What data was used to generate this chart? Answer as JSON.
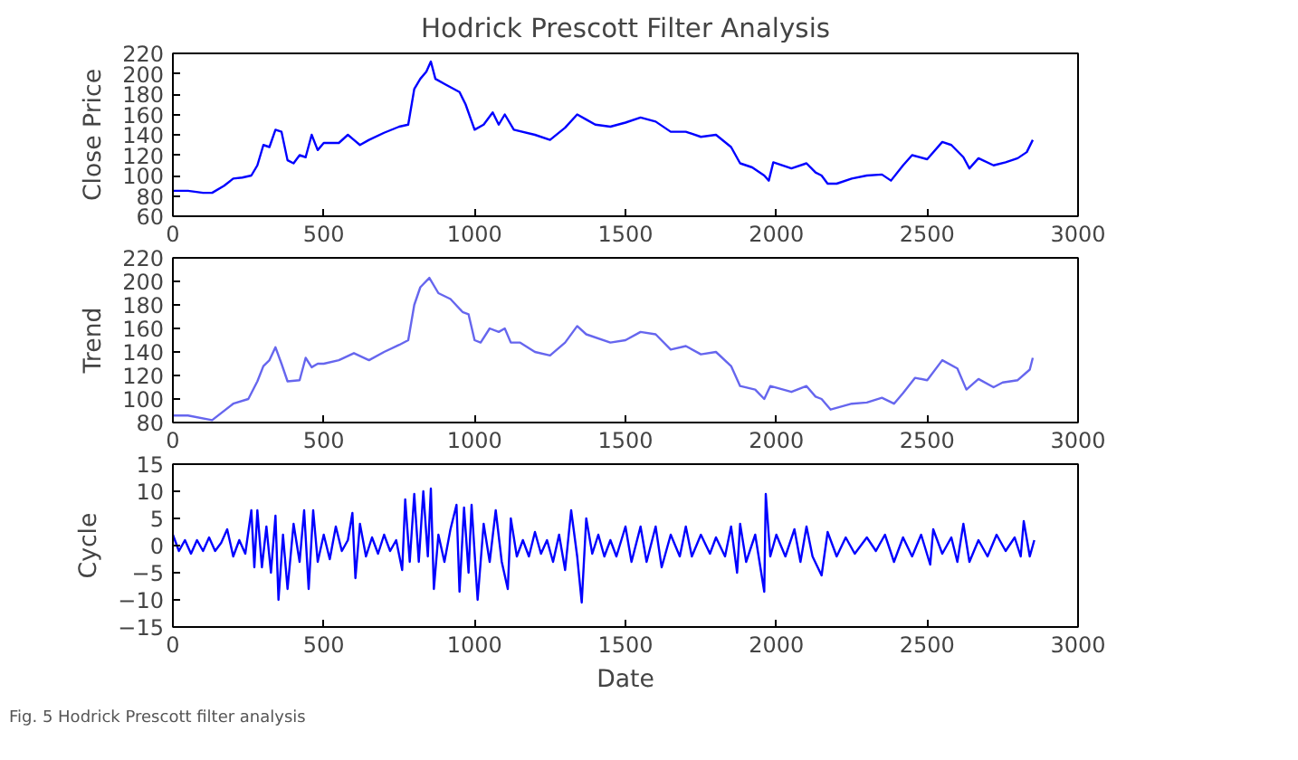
{
  "chart_data": [
    {
      "type": "line",
      "title": "Hodrick Prescott Filter Analysis",
      "ylabel": "Close Price",
      "xlim": [
        0,
        3000
      ],
      "xticks": [
        0,
        500,
        1000,
        1500,
        2000,
        2500,
        3000
      ],
      "ylim": [
        60,
        220
      ],
      "yticks": [
        60,
        80,
        100,
        120,
        140,
        160,
        180,
        200,
        220
      ],
      "series": [
        {
          "color": "#0000ff",
          "x": [
            0,
            50,
            100,
            130,
            170,
            200,
            230,
            260,
            280,
            300,
            320,
            340,
            360,
            380,
            400,
            420,
            440,
            460,
            480,
            500,
            550,
            580,
            600,
            620,
            650,
            700,
            750,
            780,
            800,
            820,
            840,
            855,
            870,
            900,
            950,
            970,
            1000,
            1030,
            1060,
            1080,
            1100,
            1130,
            1200,
            1250,
            1300,
            1340,
            1370,
            1400,
            1450,
            1500,
            1550,
            1600,
            1650,
            1700,
            1750,
            1800,
            1850,
            1880,
            1920,
            1960,
            1975,
            1990,
            2050,
            2100,
            2130,
            2150,
            2170,
            2200,
            2250,
            2300,
            2350,
            2380,
            2420,
            2450,
            2500,
            2550,
            2580,
            2620,
            2640,
            2670,
            2720,
            2760,
            2800,
            2830,
            2850
          ],
          "values": [
            85,
            85,
            83,
            83,
            90,
            97,
            98,
            100,
            110,
            130,
            128,
            145,
            143,
            115,
            112,
            120,
            118,
            140,
            125,
            132,
            132,
            140,
            135,
            130,
            135,
            142,
            148,
            150,
            185,
            195,
            202,
            212,
            195,
            190,
            182,
            170,
            145,
            150,
            162,
            150,
            160,
            145,
            140,
            135,
            147,
            160,
            155,
            150,
            148,
            152,
            157,
            153,
            143,
            143,
            138,
            140,
            128,
            112,
            108,
            100,
            95,
            113,
            107,
            112,
            103,
            100,
            92,
            92,
            97,
            100,
            101,
            95,
            110,
            120,
            116,
            133,
            130,
            118,
            107,
            117,
            110,
            113,
            117,
            123,
            135
          ]
        }
      ]
    },
    {
      "type": "line",
      "ylabel": "Trend",
      "xlim": [
        0,
        3000
      ],
      "xticks": [
        0,
        500,
        1000,
        1500,
        2000,
        2500,
        3000
      ],
      "ylim": [
        80,
        220
      ],
      "yticks": [
        80,
        100,
        120,
        140,
        160,
        180,
        200,
        220
      ],
      "series": [
        {
          "color": "#6666ee",
          "x": [
            0,
            50,
            130,
            200,
            250,
            280,
            300,
            320,
            340,
            360,
            380,
            420,
            440,
            460,
            480,
            500,
            550,
            600,
            650,
            700,
            750,
            780,
            800,
            820,
            850,
            880,
            920,
            960,
            980,
            1000,
            1020,
            1050,
            1080,
            1100,
            1120,
            1150,
            1200,
            1250,
            1300,
            1340,
            1370,
            1450,
            1500,
            1550,
            1600,
            1650,
            1700,
            1750,
            1800,
            1850,
            1880,
            1930,
            1960,
            1980,
            2050,
            2100,
            2130,
            2150,
            2180,
            2250,
            2300,
            2350,
            2390,
            2420,
            2460,
            2500,
            2550,
            2600,
            2630,
            2670,
            2720,
            2750,
            2800,
            2840,
            2850
          ],
          "values": [
            86,
            86,
            82,
            96,
            100,
            115,
            128,
            133,
            144,
            130,
            115,
            116,
            135,
            127,
            130,
            130,
            133,
            139,
            133,
            140,
            146,
            150,
            180,
            195,
            203,
            190,
            185,
            174,
            172,
            150,
            148,
            160,
            157,
            160,
            148,
            148,
            140,
            137,
            148,
            162,
            155,
            148,
            150,
            157,
            155,
            142,
            145,
            138,
            140,
            128,
            111,
            108,
            100,
            111,
            106,
            111,
            102,
            100,
            91,
            96,
            97,
            101,
            96,
            105,
            118,
            116,
            133,
            126,
            108,
            117,
            110,
            114,
            116,
            125,
            135
          ]
        }
      ]
    },
    {
      "type": "line",
      "xlabel": "Date",
      "ylabel": "Cycle",
      "xlim": [
        0,
        3000
      ],
      "xticks": [
        0,
        500,
        1000,
        1500,
        2000,
        2500,
        3000
      ],
      "ylim": [
        -15,
        15
      ],
      "yticks": [
        -15,
        -10,
        -5,
        0,
        5,
        10,
        15
      ],
      "annotations": [
        "Fig. 5 Hodrick Prescott filter analysis"
      ],
      "series": [
        {
          "color": "#0000ff",
          "x": [
            0,
            20,
            40,
            60,
            80,
            100,
            120,
            140,
            160,
            180,
            200,
            220,
            240,
            260,
            270,
            280,
            295,
            310,
            325,
            340,
            350,
            365,
            380,
            400,
            420,
            435,
            450,
            465,
            480,
            500,
            520,
            540,
            560,
            580,
            595,
            605,
            620,
            640,
            660,
            680,
            700,
            720,
            740,
            760,
            770,
            785,
            800,
            815,
            830,
            845,
            855,
            865,
            880,
            900,
            920,
            940,
            950,
            965,
            980,
            990,
            1010,
            1030,
            1050,
            1070,
            1090,
            1110,
            1120,
            1140,
            1160,
            1180,
            1200,
            1220,
            1240,
            1260,
            1280,
            1300,
            1320,
            1340,
            1355,
            1370,
            1390,
            1410,
            1430,
            1450,
            1470,
            1500,
            1520,
            1550,
            1570,
            1600,
            1620,
            1650,
            1680,
            1700,
            1720,
            1750,
            1780,
            1800,
            1830,
            1850,
            1870,
            1880,
            1900,
            1930,
            1960,
            1965,
            1980,
            2000,
            2030,
            2060,
            2080,
            2100,
            2120,
            2150,
            2170,
            2200,
            2230,
            2260,
            2300,
            2330,
            2360,
            2390,
            2420,
            2450,
            2480,
            2510,
            2520,
            2550,
            2580,
            2600,
            2620,
            2640,
            2670,
            2700,
            2730,
            2760,
            2790,
            2810,
            2820,
            2840,
            2855
          ],
          "values": [
            2,
            -1,
            1,
            -1.5,
            1,
            -1,
            1.5,
            -1,
            0.5,
            3,
            -2,
            1,
            -1.5,
            6.5,
            -4,
            6.5,
            -4,
            3.5,
            -5,
            5.5,
            -10,
            2,
            -8,
            4,
            -3,
            6.5,
            -8,
            6.5,
            -3,
            2,
            -2.5,
            3.5,
            -1,
            1,
            6,
            -6,
            4,
            -2,
            1.5,
            -1.5,
            2,
            -1,
            1,
            -4.5,
            8.5,
            -3,
            9.5,
            -3,
            10,
            -2,
            10.5,
            -8,
            2,
            -3,
            3,
            7.5,
            -8.5,
            7,
            -5,
            7.5,
            -10,
            4,
            -3,
            6.5,
            -3,
            -8,
            5,
            -2,
            1,
            -2,
            2.5,
            -1.5,
            1,
            -3,
            2,
            -4.5,
            6.5,
            -2,
            -10.5,
            5,
            -1.5,
            2,
            -2,
            1,
            -2,
            3.5,
            -3,
            3.5,
            -3,
            3.5,
            -4,
            2,
            -2,
            3.5,
            -2,
            2,
            -1.5,
            1.5,
            -2,
            3.5,
            -5,
            4,
            -3,
            2,
            -8.5,
            9.5,
            -2,
            2,
            -2,
            3,
            -3,
            3.5,
            -2,
            -5.5,
            2.5,
            -2,
            1.5,
            -1.5,
            1.5,
            -1,
            2,
            -3,
            1.5,
            -2,
            2,
            -3.5,
            3,
            -1.5,
            1.5,
            -3,
            4,
            -3,
            1,
            -2,
            2,
            -1,
            1.5,
            -2,
            4.5,
            -2,
            1
          ]
        }
      ]
    }
  ]
}
